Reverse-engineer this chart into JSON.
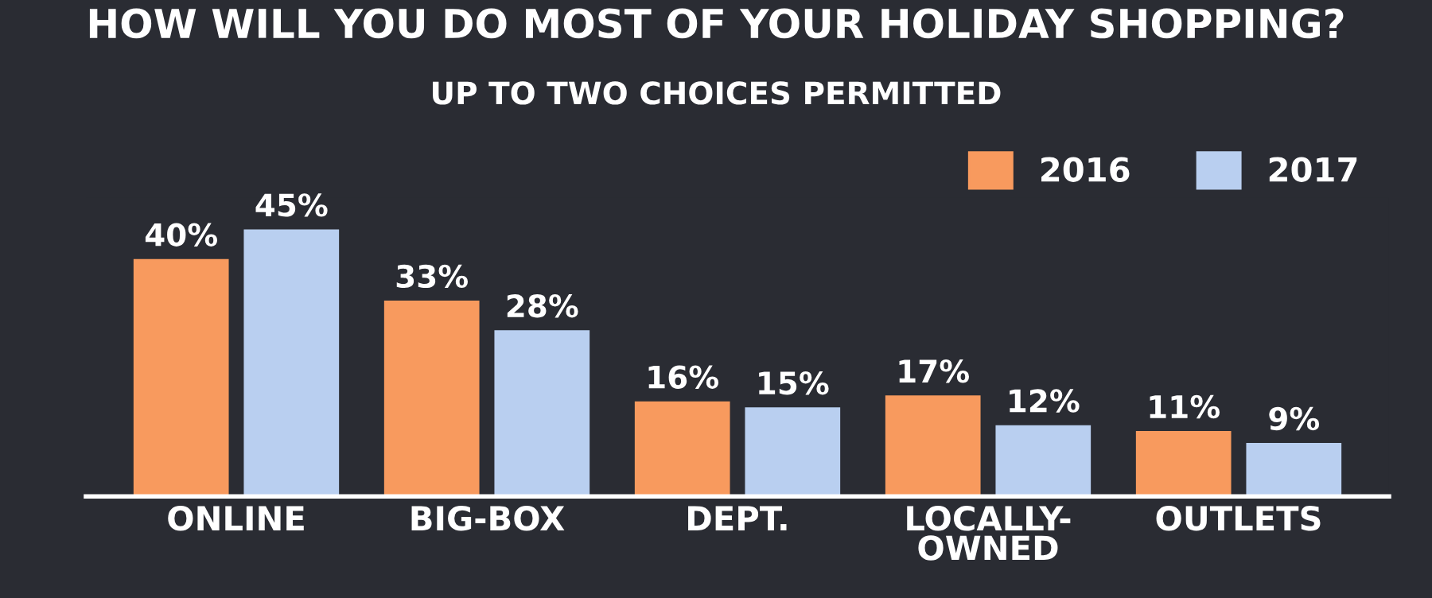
{
  "chart_data": {
    "type": "bar",
    "title": "HOW WILL YOU DO MOST OF YOUR HOLIDAY SHOPPING?",
    "subtitle": "UP TO TWO CHOICES PERMITTED",
    "categories": [
      "ONLINE",
      "BIG-BOX",
      "DEPT.",
      "LOCALLY-\nOWNED",
      "OUTLETS"
    ],
    "series": [
      {
        "name": "2016",
        "color": "#f89a5e",
        "values": [
          40,
          33,
          16,
          17,
          11
        ],
        "value_labels": [
          "40%",
          "33%",
          "16%",
          "17%",
          "11%"
        ]
      },
      {
        "name": "2017",
        "color": "#b9cff0",
        "values": [
          45,
          28,
          15,
          12,
          9
        ],
        "value_labels": [
          "45%",
          "28%",
          "15%",
          "12%",
          "9%"
        ]
      }
    ],
    "tick_labels": "x",
    "grid": false,
    "legend": "top right"
  }
}
